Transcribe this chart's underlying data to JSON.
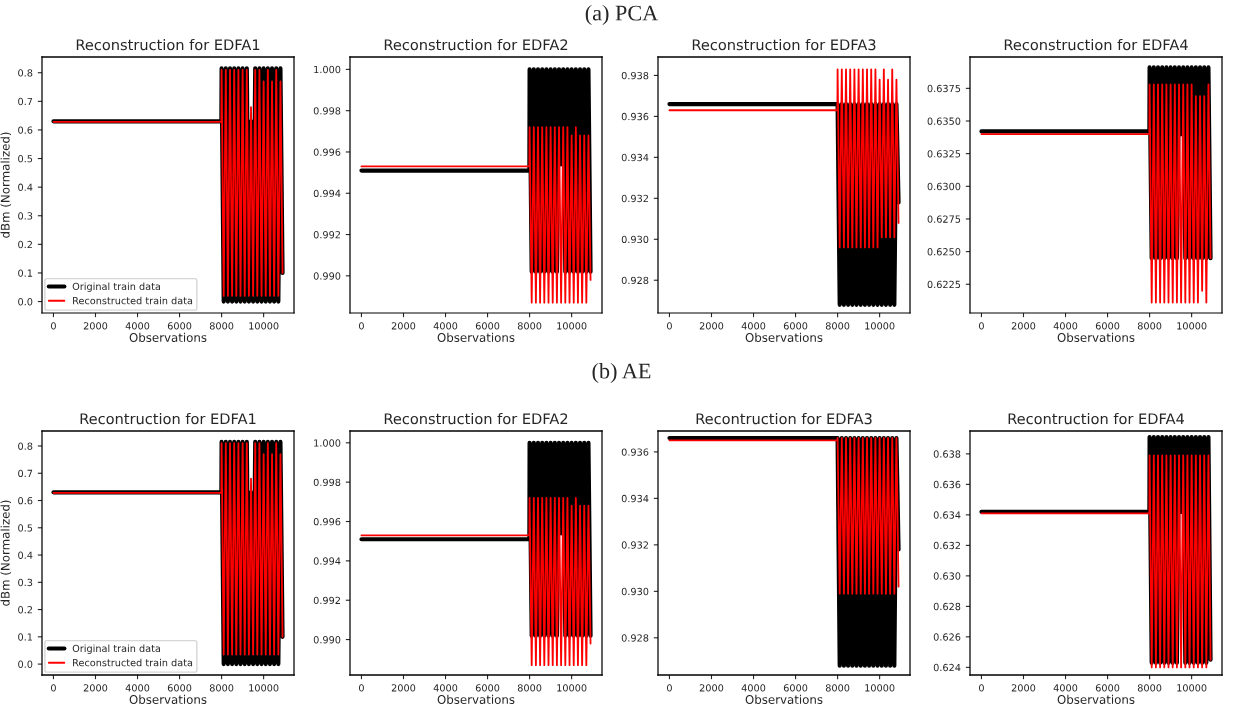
{
  "chart_data": [
    {
      "type": "line",
      "title": "Reconstruction for EDFA1",
      "xlabel": "Observations",
      "ylabel": "dBm (Normalized)",
      "annotations": [
        "(a) PCA"
      ],
      "legend": "bottom left",
      "grid": false,
      "x": [
        0,
        7990,
        8000,
        8100,
        8200,
        8300,
        8400,
        8500,
        8600,
        8700,
        8800,
        8900,
        9000,
        9100,
        9200,
        9300,
        9400,
        9500,
        9600,
        9700,
        9800,
        9900,
        10000,
        10100,
        10200,
        10300,
        10400,
        10500,
        10600,
        10700,
        10800,
        10900
      ],
      "xlim": [
        -545,
        11445
      ],
      "xticks": [
        0,
        2000,
        4000,
        6000,
        8000,
        10000
      ],
      "ylim": [
        -0.04,
        0.855
      ],
      "yticks": [
        {
          "value": 0,
          "label": "0.0"
        },
        0.1,
        0.2,
        0.3,
        0.4,
        0.5,
        0.6,
        0.7,
        0.8
      ],
      "series": [
        {
          "name": "Original train data",
          "color": "#000000",
          "values": [
            0.63,
            0.63,
            0.815,
            0.0,
            0.815,
            0.0,
            0.815,
            0.0,
            0.815,
            0.0,
            0.815,
            0.0,
            0.815,
            0.0,
            0.815,
            0.0,
            0.63,
            0.0,
            0.815,
            0.0,
            0.815,
            0.0,
            0.815,
            0.0,
            0.815,
            0.0,
            0.815,
            0.0,
            0.815,
            0.0,
            0.815,
            0.1
          ]
        },
        {
          "name": "Reconstructed train data",
          "color": "#ff0000",
          "values": [
            0.628,
            0.628,
            0.81,
            0.02,
            0.81,
            0.02,
            0.81,
            0.02,
            0.81,
            0.02,
            0.81,
            0.02,
            0.81,
            0.02,
            0.81,
            0.02,
            0.68,
            0.02,
            0.81,
            0.02,
            0.81,
            0.02,
            0.77,
            0.02,
            0.81,
            0.02,
            0.77,
            0.02,
            0.81,
            0.02,
            0.77,
            0.1
          ]
        }
      ]
    },
    {
      "type": "line",
      "title": "Reconstruction for EDFA2",
      "xlabel": "Observations",
      "grid": false,
      "x": [
        0,
        7990,
        8000,
        8100,
        8200,
        8300,
        8400,
        8500,
        8600,
        8700,
        8800,
        8900,
        9000,
        9100,
        9200,
        9300,
        9400,
        9500,
        9600,
        9700,
        9800,
        9900,
        10000,
        10100,
        10200,
        10300,
        10400,
        10500,
        10600,
        10700,
        10800,
        10900
      ],
      "xlim": [
        -545,
        11445
      ],
      "xticks": [
        0,
        2000,
        4000,
        6000,
        8000,
        10000
      ],
      "ylim": [
        0.9882,
        1.0006
      ],
      "yticks": [
        {
          "value": 0.99,
          "label": "0.990"
        },
        {
          "value": 0.992,
          "label": "0.992"
        },
        {
          "value": 0.994,
          "label": "0.994"
        },
        {
          "value": 0.996,
          "label": "0.996"
        },
        {
          "value": 0.998,
          "label": "0.998"
        },
        {
          "value": 1.0,
          "label": "1.000"
        }
      ],
      "series": [
        {
          "color": "#000000",
          "values": [
            0.9951,
            0.9951,
            1.0,
            0.9902,
            1.0,
            0.9902,
            1.0,
            0.9902,
            1.0,
            0.9902,
            1.0,
            0.9902,
            1.0,
            0.9902,
            1.0,
            0.9902,
            1.0,
            0.9954,
            1.0,
            0.9902,
            1.0,
            0.9902,
            1.0,
            0.9902,
            1.0,
            0.9902,
            1.0,
            0.9902,
            1.0,
            0.9902,
            1.0,
            0.9902
          ]
        },
        {
          "color": "#ff0000",
          "values": [
            0.9953,
            0.9953,
            0.9972,
            0.9887,
            0.9972,
            0.9887,
            0.9972,
            0.9887,
            0.9972,
            0.9887,
            0.9972,
            0.9887,
            0.9972,
            0.9887,
            0.9972,
            0.9887,
            0.9972,
            0.9887,
            0.9972,
            0.9887,
            0.9972,
            0.9887,
            0.9968,
            0.9887,
            0.9972,
            0.9887,
            0.9968,
            0.9887,
            0.9968,
            0.9887,
            0.9968,
            0.9898
          ]
        }
      ]
    },
    {
      "type": "line",
      "title": "Reconstruction for EDFA3",
      "xlabel": "Observations",
      "grid": false,
      "x": [
        0,
        7990,
        8000,
        8100,
        8200,
        8300,
        8400,
        8500,
        8600,
        8700,
        8800,
        8900,
        9000,
        9100,
        9200,
        9300,
        9400,
        9500,
        9600,
        9700,
        9800,
        9900,
        10000,
        10100,
        10200,
        10300,
        10400,
        10500,
        10600,
        10700,
        10800,
        10900
      ],
      "xlim": [
        -545,
        11445
      ],
      "xticks": [
        0,
        2000,
        4000,
        6000,
        8000,
        10000
      ],
      "ylim": [
        0.9264,
        0.9389
      ],
      "yticks": [
        {
          "value": 0.928,
          "label": "0.928"
        },
        {
          "value": 0.93,
          "label": "0.930"
        },
        {
          "value": 0.932,
          "label": "0.932"
        },
        {
          "value": 0.934,
          "label": "0.934"
        },
        {
          "value": 0.936,
          "label": "0.936"
        },
        {
          "value": 0.938,
          "label": "0.938"
        }
      ],
      "series": [
        {
          "color": "#000000",
          "values": [
            0.9366,
            0.9366,
            0.9366,
            0.9268,
            0.9366,
            0.9268,
            0.9366,
            0.9268,
            0.9366,
            0.9268,
            0.9366,
            0.9268,
            0.9366,
            0.9268,
            0.9366,
            0.9268,
            0.9366,
            0.9268,
            0.9366,
            0.9268,
            0.9366,
            0.9268,
            0.9366,
            0.9268,
            0.9366,
            0.9268,
            0.9366,
            0.9268,
            0.9366,
            0.9268,
            0.9366,
            0.9318
          ]
        },
        {
          "color": "#ff0000",
          "values": [
            0.9363,
            0.9363,
            0.9383,
            0.9296,
            0.9383,
            0.9296,
            0.9383,
            0.9296,
            0.9383,
            0.9296,
            0.9383,
            0.9296,
            0.9383,
            0.9296,
            0.9383,
            0.9296,
            0.9383,
            0.9296,
            0.9383,
            0.9296,
            0.9383,
            0.9296,
            0.9378,
            0.9301,
            0.9383,
            0.9301,
            0.9378,
            0.9301,
            0.9383,
            0.9301,
            0.9378,
            0.9308
          ]
        }
      ]
    },
    {
      "type": "line",
      "title": "Reconstruction for EDFA4",
      "xlabel": "Observations",
      "grid": false,
      "x": [
        0,
        7990,
        8000,
        8100,
        8200,
        8300,
        8400,
        8500,
        8600,
        8700,
        8800,
        8900,
        9000,
        9100,
        9200,
        9300,
        9400,
        9500,
        9600,
        9700,
        9800,
        9900,
        10000,
        10100,
        10200,
        10300,
        10400,
        10500,
        10600,
        10700,
        10800,
        10900
      ],
      "xlim": [
        -545,
        11445
      ],
      "xticks": [
        0,
        2000,
        4000,
        6000,
        8000,
        10000
      ],
      "ylim": [
        0.6203,
        0.6399
      ],
      "yticks": [
        {
          "value": 0.6225,
          "label": "0.6225"
        },
        {
          "value": 0.625,
          "label": "0.6250"
        },
        {
          "value": 0.6275,
          "label": "0.6275"
        },
        {
          "value": 0.63,
          "label": "0.6300"
        },
        {
          "value": 0.6325,
          "label": "0.6325"
        },
        {
          "value": 0.635,
          "label": "0.6350"
        },
        {
          "value": 0.6375,
          "label": "0.6375"
        }
      ],
      "series": [
        {
          "color": "#000000",
          "values": [
            0.6342,
            0.6342,
            0.6391,
            0.6245,
            0.6391,
            0.6245,
            0.6391,
            0.6245,
            0.6391,
            0.6245,
            0.6391,
            0.6245,
            0.6391,
            0.6245,
            0.6391,
            0.6245,
            0.6391,
            0.634,
            0.6391,
            0.6245,
            0.6391,
            0.6245,
            0.6391,
            0.6245,
            0.6391,
            0.6245,
            0.6391,
            0.6245,
            0.6391,
            0.6245,
            0.6391,
            0.6245
          ]
        },
        {
          "color": "#ff0000",
          "values": [
            0.634,
            0.634,
            0.6378,
            0.6211,
            0.6378,
            0.6211,
            0.6378,
            0.6211,
            0.6378,
            0.6211,
            0.6378,
            0.6211,
            0.6378,
            0.6211,
            0.6378,
            0.6211,
            0.6378,
            0.6211,
            0.6378,
            0.6211,
            0.6378,
            0.6211,
            0.6378,
            0.6211,
            0.6369,
            0.6211,
            0.6369,
            0.622,
            0.6369,
            0.6211,
            0.6378,
            0.6245
          ]
        }
      ]
    },
    {
      "type": "line",
      "title": "Recontruction for EDFA1",
      "xlabel": "Observations",
      "ylabel": "dBm (Normalized)",
      "annotations": [
        "(b) AE"
      ],
      "legend": "bottom left",
      "grid": false,
      "x": [
        0,
        7990,
        8000,
        8100,
        8200,
        8300,
        8400,
        8500,
        8600,
        8700,
        8800,
        8900,
        9000,
        9100,
        9200,
        9300,
        9400,
        9500,
        9600,
        9700,
        9800,
        9900,
        10000,
        10100,
        10200,
        10300,
        10400,
        10500,
        10600,
        10700,
        10800,
        10900
      ],
      "xlim": [
        -545,
        11445
      ],
      "xticks": [
        0,
        2000,
        4000,
        6000,
        8000,
        10000
      ],
      "ylim": [
        -0.04,
        0.855
      ],
      "yticks": [
        {
          "value": 0,
          "label": "0.0"
        },
        0.1,
        0.2,
        0.3,
        0.4,
        0.5,
        0.6,
        0.7,
        0.8
      ],
      "series": [
        {
          "name": "Original train data",
          "color": "#000000",
          "values": [
            0.63,
            0.63,
            0.815,
            0.0,
            0.815,
            0.0,
            0.815,
            0.0,
            0.815,
            0.0,
            0.815,
            0.0,
            0.815,
            0.0,
            0.815,
            0.0,
            0.63,
            0.0,
            0.815,
            0.0,
            0.815,
            0.0,
            0.815,
            0.0,
            0.815,
            0.0,
            0.815,
            0.0,
            0.815,
            0.0,
            0.815,
            0.1
          ]
        },
        {
          "name": "Reconstructed train data",
          "color": "#ff0000",
          "values": [
            0.628,
            0.628,
            0.81,
            0.035,
            0.81,
            0.035,
            0.81,
            0.035,
            0.81,
            0.035,
            0.81,
            0.035,
            0.81,
            0.035,
            0.81,
            0.035,
            0.68,
            0.035,
            0.81,
            0.035,
            0.81,
            0.035,
            0.77,
            0.035,
            0.81,
            0.035,
            0.77,
            0.035,
            0.81,
            0.035,
            0.77,
            0.1
          ]
        }
      ]
    },
    {
      "type": "line",
      "title": "Reconstruction for EDFA2",
      "xlabel": "Observations",
      "grid": false,
      "x": [
        0,
        7990,
        8000,
        8100,
        8200,
        8300,
        8400,
        8500,
        8600,
        8700,
        8800,
        8900,
        9000,
        9100,
        9200,
        9300,
        9400,
        9500,
        9600,
        9700,
        9800,
        9900,
        10000,
        10100,
        10200,
        10300,
        10400,
        10500,
        10600,
        10700,
        10800,
        10900
      ],
      "xlim": [
        -545,
        11445
      ],
      "xticks": [
        0,
        2000,
        4000,
        6000,
        8000,
        10000
      ],
      "ylim": [
        0.9882,
        1.0006
      ],
      "yticks": [
        {
          "value": 0.99,
          "label": "0.990"
        },
        {
          "value": 0.992,
          "label": "0.992"
        },
        {
          "value": 0.994,
          "label": "0.994"
        },
        {
          "value": 0.996,
          "label": "0.996"
        },
        {
          "value": 0.998,
          "label": "0.998"
        },
        {
          "value": 1.0,
          "label": "1.000"
        }
      ],
      "series": [
        {
          "color": "#000000",
          "values": [
            0.9951,
            0.9951,
            1.0,
            0.9902,
            1.0,
            0.9902,
            1.0,
            0.9902,
            1.0,
            0.9902,
            1.0,
            0.9902,
            1.0,
            0.9902,
            1.0,
            0.9902,
            1.0,
            0.9954,
            1.0,
            0.9902,
            1.0,
            0.9902,
            1.0,
            0.9902,
            1.0,
            0.9902,
            1.0,
            0.9902,
            1.0,
            0.9902,
            1.0,
            0.9902
          ]
        },
        {
          "color": "#ff0000",
          "values": [
            0.9953,
            0.9953,
            0.9972,
            0.9887,
            0.9972,
            0.9887,
            0.9972,
            0.9887,
            0.9972,
            0.9887,
            0.9972,
            0.9887,
            0.9972,
            0.9887,
            0.9972,
            0.9887,
            0.9972,
            0.9887,
            0.9972,
            0.9887,
            0.9972,
            0.9887,
            0.9968,
            0.9887,
            0.9972,
            0.9887,
            0.9968,
            0.9887,
            0.9968,
            0.9887,
            0.9968,
            0.9898
          ]
        }
      ]
    },
    {
      "type": "line",
      "title": "Recontruction for EDFA3",
      "xlabel": "Observations",
      "grid": false,
      "x": [
        0,
        7990,
        8000,
        8100,
        8200,
        8300,
        8400,
        8500,
        8600,
        8700,
        8800,
        8900,
        9000,
        9100,
        9200,
        9300,
        9400,
        9500,
        9600,
        9700,
        9800,
        9900,
        10000,
        10100,
        10200,
        10300,
        10400,
        10500,
        10600,
        10700,
        10800,
        10900
      ],
      "xlim": [
        -545,
        11445
      ],
      "xticks": [
        0,
        2000,
        4000,
        6000,
        8000,
        10000
      ],
      "ylim": [
        0.9264,
        0.9369
      ],
      "yticks": [
        {
          "value": 0.928,
          "label": "0.928"
        },
        {
          "value": 0.93,
          "label": "0.930"
        },
        {
          "value": 0.932,
          "label": "0.932"
        },
        {
          "value": 0.934,
          "label": "0.934"
        },
        {
          "value": 0.936,
          "label": "0.936"
        }
      ],
      "series": [
        {
          "color": "#000000",
          "values": [
            0.9366,
            0.9366,
            0.9366,
            0.9268,
            0.9366,
            0.9268,
            0.9366,
            0.9268,
            0.9366,
            0.9268,
            0.9366,
            0.9268,
            0.9366,
            0.9268,
            0.9366,
            0.9268,
            0.9366,
            0.9268,
            0.9366,
            0.9268,
            0.9366,
            0.9268,
            0.9366,
            0.9268,
            0.9366,
            0.9268,
            0.9366,
            0.9268,
            0.9366,
            0.9268,
            0.9366,
            0.9318
          ]
        },
        {
          "color": "#ff0000",
          "values": [
            0.9365,
            0.9365,
            0.9366,
            0.9299,
            0.9366,
            0.9299,
            0.9366,
            0.9299,
            0.9366,
            0.9299,
            0.9366,
            0.9299,
            0.9366,
            0.9299,
            0.9366,
            0.9299,
            0.9366,
            0.9299,
            0.9366,
            0.9299,
            0.9366,
            0.9299,
            0.9366,
            0.9299,
            0.9366,
            0.9299,
            0.9366,
            0.9299,
            0.9366,
            0.9299,
            0.9366,
            0.9302
          ]
        }
      ]
    },
    {
      "type": "line",
      "title": "Recontruction for EDFA4",
      "xlabel": "Observations",
      "grid": false,
      "x": [
        0,
        7990,
        8000,
        8100,
        8200,
        8300,
        8400,
        8500,
        8600,
        8700,
        8800,
        8900,
        9000,
        9100,
        9200,
        9300,
        9400,
        9500,
        9600,
        9700,
        9800,
        9900,
        10000,
        10100,
        10200,
        10300,
        10400,
        10500,
        10600,
        10700,
        10800,
        10900
      ],
      "xlim": [
        -545,
        11445
      ],
      "xticks": [
        0,
        2000,
        4000,
        6000,
        8000,
        10000
      ],
      "ylim": [
        0.6235,
        0.6395
      ],
      "yticks": [
        {
          "value": 0.624,
          "label": "0.624"
        },
        {
          "value": 0.626,
          "label": "0.626"
        },
        {
          "value": 0.628,
          "label": "0.628"
        },
        {
          "value": 0.63,
          "label": "0.630"
        },
        {
          "value": 0.632,
          "label": "0.632"
        },
        {
          "value": 0.634,
          "label": "0.634"
        },
        {
          "value": 0.636,
          "label": "0.636"
        },
        {
          "value": 0.638,
          "label": "0.638"
        }
      ],
      "series": [
        {
          "color": "#000000",
          "values": [
            0.6342,
            0.6342,
            0.6391,
            0.6243,
            0.6391,
            0.6243,
            0.6391,
            0.6243,
            0.6391,
            0.6243,
            0.6391,
            0.6243,
            0.6391,
            0.6243,
            0.6391,
            0.6243,
            0.6391,
            0.6342,
            0.6391,
            0.6243,
            0.6391,
            0.6243,
            0.6391,
            0.6243,
            0.6391,
            0.6243,
            0.6391,
            0.6243,
            0.6391,
            0.6243,
            0.6391,
            0.6245
          ]
        },
        {
          "color": "#ff0000",
          "values": [
            0.6341,
            0.6341,
            0.6379,
            0.624,
            0.6379,
            0.624,
            0.6379,
            0.624,
            0.6379,
            0.624,
            0.6379,
            0.624,
            0.6379,
            0.624,
            0.6379,
            0.624,
            0.6379,
            0.624,
            0.6379,
            0.624,
            0.6379,
            0.624,
            0.6379,
            0.624,
            0.6379,
            0.624,
            0.6379,
            0.624,
            0.6379,
            0.624,
            0.6379,
            0.6245
          ]
        }
      ]
    }
  ]
}
